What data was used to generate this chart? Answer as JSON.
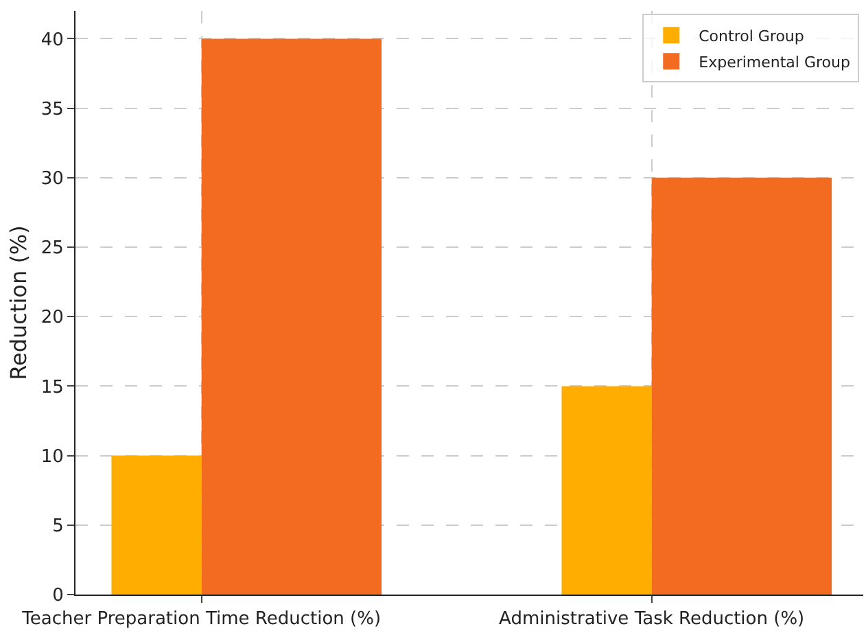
{
  "chart_data": {
    "type": "bar",
    "ylabel": "Reduction (%)",
    "categories": [
      "Teacher Preparation Time Reduction (%)",
      "Administrative Task Reduction (%)"
    ],
    "series": [
      {
        "name": "Control Group",
        "color": "#ffae00",
        "values": [
          10,
          15
        ]
      },
      {
        "name": "Experimental Group",
        "color": "#f26b21",
        "values": [
          40,
          30
        ]
      }
    ],
    "ylim": [
      0,
      42
    ],
    "yticks": [
      0,
      5,
      10,
      15,
      20,
      25,
      30,
      35,
      40
    ],
    "grid": true,
    "legend": "top right"
  }
}
